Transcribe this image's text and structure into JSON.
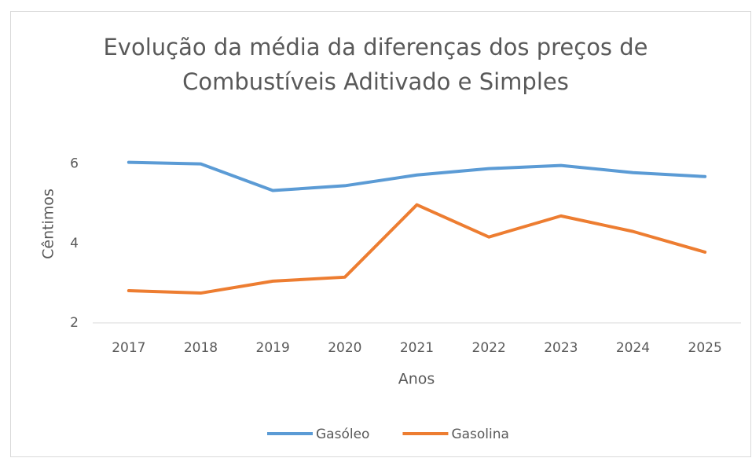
{
  "chart_data": {
    "type": "line",
    "title": [
      "Evolução da média da diferenças dos preços de",
      "Combustíveis Aditivado e Simples"
    ],
    "x_label": "Anos",
    "y_label": "Cêntimos",
    "categories": [
      "2017",
      "2018",
      "2019",
      "2020",
      "2021",
      "2022",
      "2023",
      "2024",
      "2025"
    ],
    "series": [
      {
        "name": "Gasóleo",
        "color": "#5b9bd5",
        "values": [
          6.04,
          6.0,
          5.33,
          5.45,
          5.72,
          5.88,
          5.96,
          5.78,
          5.68
        ]
      },
      {
        "name": "Gasolina",
        "color": "#ed7d31",
        "values": [
          2.81,
          2.75,
          3.05,
          3.15,
          4.97,
          4.16,
          4.69,
          4.3,
          3.78
        ]
      }
    ],
    "ylim": [
      2,
      7
    ],
    "yticks": [
      2,
      4,
      6
    ],
    "grid": false,
    "legend": "bottom"
  }
}
